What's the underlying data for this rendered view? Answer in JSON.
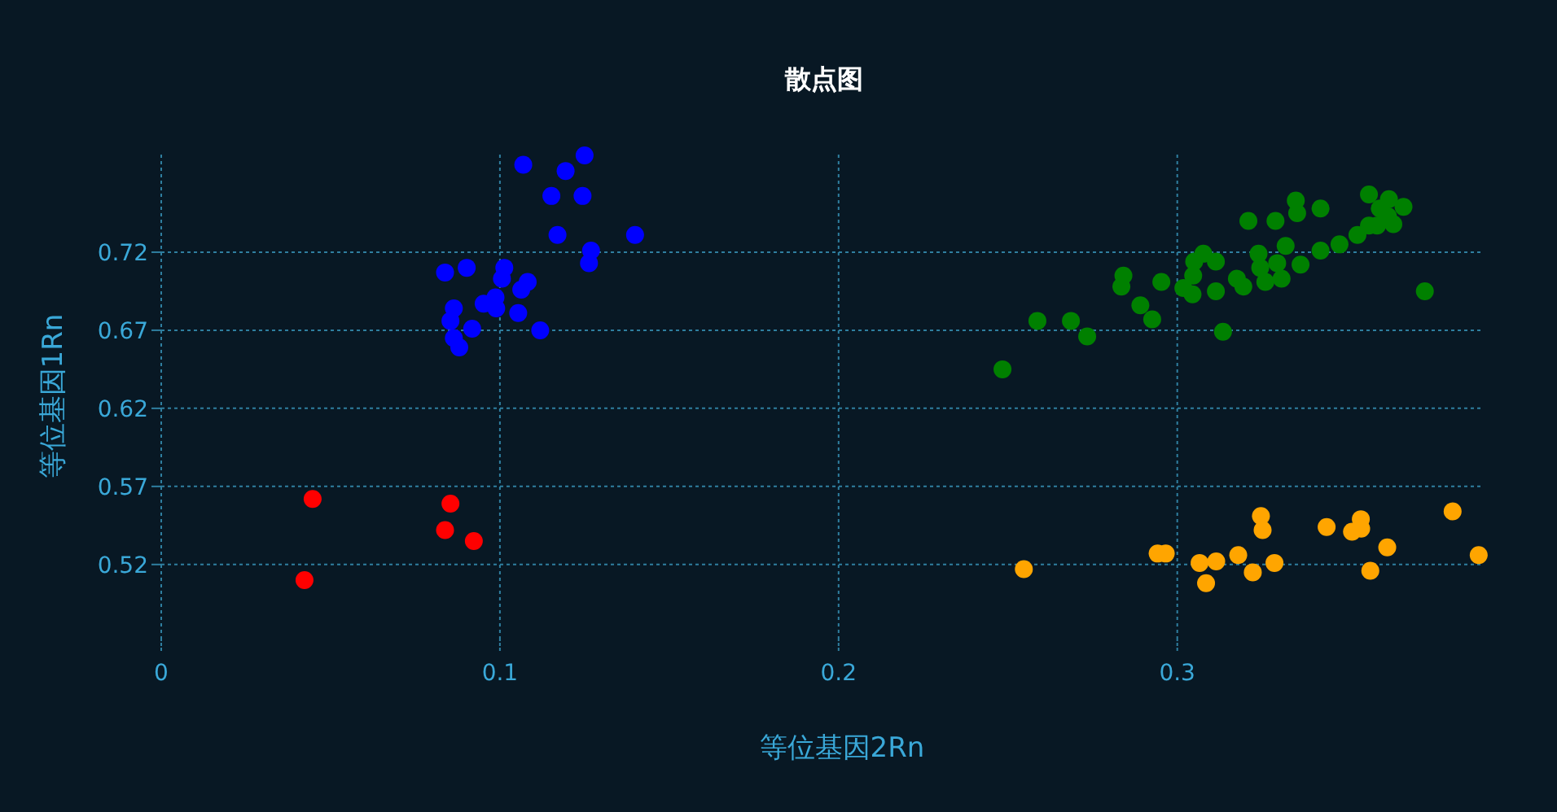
{
  "chart_data": {
    "type": "scatter",
    "title": "散点图",
    "xlabel": "等位基因2Rn",
    "ylabel": "等位基因1Rn",
    "xlim": [
      0,
      0.39
    ],
    "ylim": [
      0.473,
      0.7825
    ],
    "xticks": [
      0,
      0.1,
      0.2,
      0.3
    ],
    "yticks": [
      0.52,
      0.57,
      0.62,
      0.67,
      0.72
    ],
    "grid": true,
    "marker": "circle",
    "series": [
      {
        "color": "#ff0000",
        "x": [
          0.0447,
          0.0854,
          0.0838,
          0.0923,
          0.0423
        ],
        "values": [
          0.562,
          0.559,
          0.542,
          0.535,
          0.51
        ]
      },
      {
        "color": "#0000ff",
        "x": [
          0.1069,
          0.125,
          0.1194,
          0.1152,
          0.1244,
          0.117,
          0.1399,
          0.1269,
          0.1263,
          0.0838,
          0.0902,
          0.1013,
          0.1006,
          0.1082,
          0.1063,
          0.0987,
          0.0952,
          0.0989,
          0.0864,
          0.1054,
          0.0854,
          0.0918,
          0.1119,
          0.0864,
          0.088
        ],
        "values": [
          0.776,
          0.782,
          0.772,
          0.756,
          0.756,
          0.731,
          0.731,
          0.721,
          0.713,
          0.707,
          0.71,
          0.71,
          0.703,
          0.701,
          0.696,
          0.691,
          0.687,
          0.684,
          0.684,
          0.681,
          0.676,
          0.671,
          0.67,
          0.665,
          0.659
        ]
      },
      {
        "color": "#008000",
        "x": [
          0.2484,
          0.2587,
          0.2686,
          0.2734,
          0.2841,
          0.2835,
          0.2891,
          0.2926,
          0.2953,
          0.3018,
          0.3045,
          0.3047,
          0.305,
          0.3077,
          0.3114,
          0.3114,
          0.3135,
          0.3176,
          0.3195,
          0.321,
          0.324,
          0.3245,
          0.326,
          0.329,
          0.3295,
          0.3308,
          0.332,
          0.335,
          0.3354,
          0.3364,
          0.3423,
          0.3423,
          0.3479,
          0.3532,
          0.3566,
          0.3566,
          0.359,
          0.3598,
          0.3625,
          0.3622,
          0.3638,
          0.3668,
          0.3731
        ],
        "values": [
          0.645,
          0.676,
          0.676,
          0.666,
          0.705,
          0.698,
          0.686,
          0.677,
          0.701,
          0.697,
          0.693,
          0.705,
          0.714,
          0.719,
          0.714,
          0.695,
          0.669,
          0.703,
          0.698,
          0.74,
          0.719,
          0.71,
          0.701,
          0.74,
          0.713,
          0.703,
          0.724,
          0.753,
          0.745,
          0.712,
          0.748,
          0.721,
          0.725,
          0.731,
          0.737,
          0.757,
          0.737,
          0.748,
          0.754,
          0.743,
          0.738,
          0.749,
          0.695
        ]
      },
      {
        "color": "#ffa500",
        "x": [
          0.2547,
          0.2942,
          0.2966,
          0.3066,
          0.3085,
          0.3115,
          0.318,
          0.3223,
          0.3247,
          0.3252,
          0.3287,
          0.3441,
          0.3516,
          0.3542,
          0.3543,
          0.357,
          0.362,
          0.3813,
          0.389
        ],
        "values": [
          0.517,
          0.527,
          0.527,
          0.521,
          0.508,
          0.522,
          0.526,
          0.515,
          0.551,
          0.542,
          0.521,
          0.544,
          0.541,
          0.549,
          0.543,
          0.516,
          0.531,
          0.554,
          0.526
        ]
      }
    ]
  }
}
